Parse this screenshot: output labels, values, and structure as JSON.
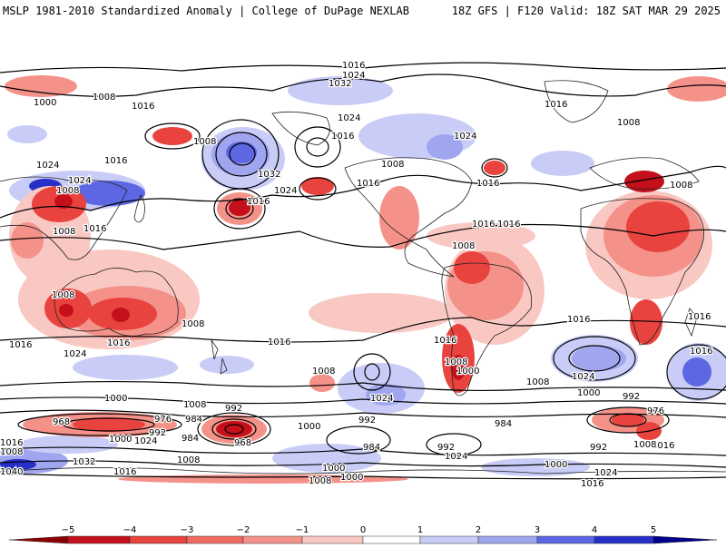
{
  "header": {
    "left": "MSLP 1981-2010 Standardized Anomaly | College of DuPage NEXLAB",
    "right": "18Z GFS | F120 Valid: 18Z SAT MAR 29 2025"
  },
  "colors": {
    "strong_negative": "#c4101a",
    "negative": "#e8433e",
    "weak_negative": "#f4928a",
    "faint_negative": "#f9c8c3",
    "faint_positive": "#c9ccf7",
    "weak_positive": "#9fa6ef",
    "positive": "#5d67e3",
    "strong_positive": "#2630c9",
    "contour": "#000000",
    "coastline": "#222222"
  },
  "isobar_labels": [
    "1016",
    "1024",
    "1008",
    "1000",
    "1016",
    "1032",
    "1016",
    "1024",
    "1016",
    "1008",
    "1024",
    "1024",
    "1016",
    "1008",
    "1016",
    "1008",
    "1016",
    "1016",
    "1032",
    "1024",
    "1024",
    "1008",
    "1008",
    "1008",
    "1016",
    "1016",
    "1016",
    "1008",
    "1016",
    "1024",
    "1008",
    "1008",
    "1016",
    "1016",
    "1016",
    "1008",
    "1016",
    "1008",
    "1000",
    "1008",
    "1024",
    "1016",
    "1024",
    "1000",
    "1000",
    "1008",
    "992",
    "1008",
    "992",
    "1000",
    "976",
    "968",
    "984",
    "992",
    "1000",
    "1024",
    "1008",
    "984",
    "992",
    "968",
    "1016",
    "1008",
    "1032",
    "1016",
    "992",
    "984",
    "1000",
    "1000",
    "1008",
    "976",
    "992",
    "984",
    "1016",
    "1000",
    "1040",
    "1024",
    "1016",
    "1016",
    "1008",
    "1024"
  ],
  "colorbar": {
    "ticks": [
      "−5",
      "−4",
      "−3",
      "−2",
      "−1",
      "0",
      "1",
      "2",
      "3",
      "4",
      "5"
    ]
  }
}
